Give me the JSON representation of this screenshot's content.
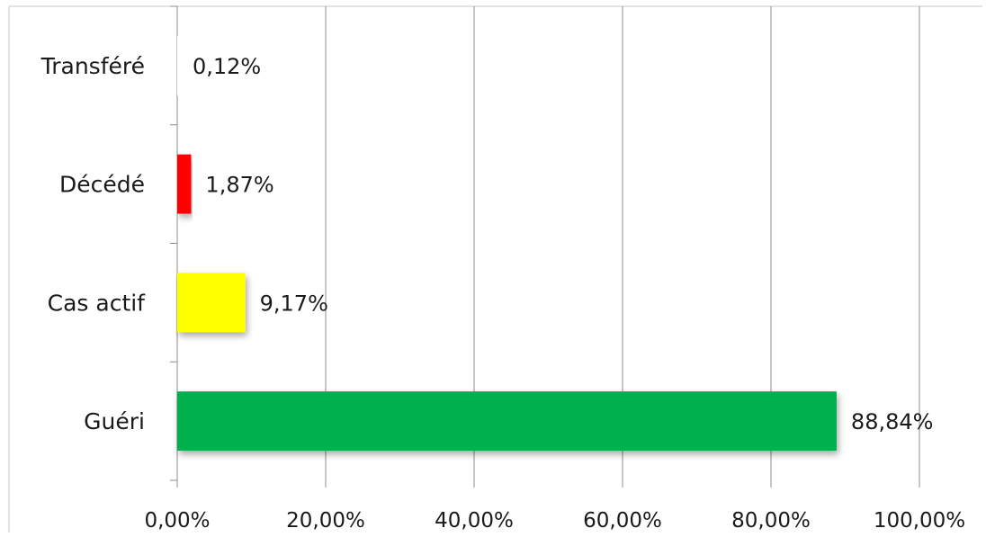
{
  "chart_data": {
    "type": "bar",
    "orientation": "horizontal",
    "categories": [
      "Transféré",
      "Décédé",
      "Cas actif",
      "Guéri"
    ],
    "values": [
      0.12,
      1.87,
      9.17,
      88.84
    ],
    "value_labels": [
      "0,12%",
      "1,87%",
      "9,17%",
      "88,84%"
    ],
    "bar_colors": [
      "#ffffff",
      "#ff0000",
      "#ffff00",
      "#00b050"
    ],
    "xlim": [
      0,
      100
    ],
    "x_ticks": [
      0,
      20,
      40,
      60,
      80,
      100
    ],
    "x_tick_labels": [
      "0,00%",
      "20,00%",
      "40,00%",
      "60,00%",
      "80,00%",
      "100,00%"
    ],
    "grid": "vertical",
    "legend": "none"
  }
}
